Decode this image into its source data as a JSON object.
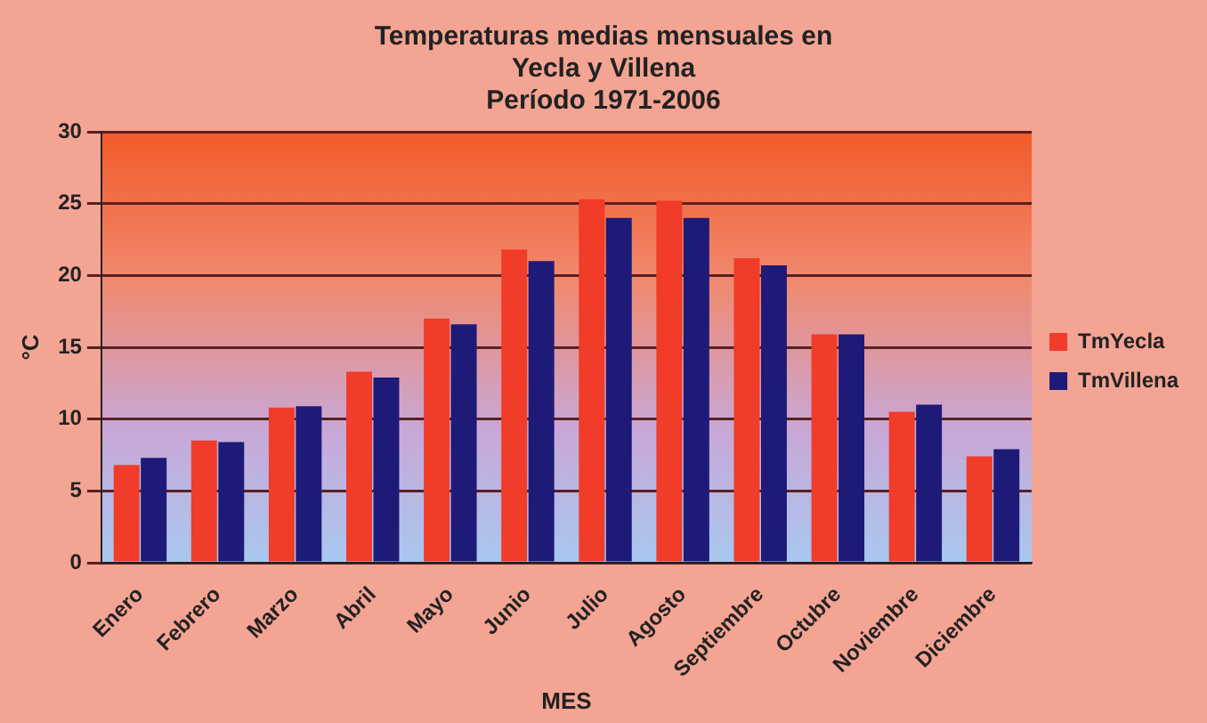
{
  "chart_data": {
    "type": "bar",
    "title": "Temperaturas medias mensuales en\nYecla y Villena\nPeríodo 1971-2006",
    "xlabel": "MES",
    "ylabel": "°C",
    "categories": [
      "Enero",
      "Febrero",
      "Marzo",
      "Abril",
      "Mayo",
      "Junio",
      "Julio",
      "Agosto",
      "Septiembre",
      "Octubre",
      "Noviembre",
      "Diciembre"
    ],
    "series": [
      {
        "name": "TmYecla",
        "color": "#f03c28",
        "values": [
          6.8,
          8.5,
          10.8,
          13.3,
          17.0,
          21.8,
          25.3,
          25.2,
          21.2,
          15.9,
          10.5,
          7.4
        ]
      },
      {
        "name": "TmVillena",
        "color": "#1e1a78",
        "values": [
          7.3,
          8.4,
          10.9,
          12.9,
          16.6,
          21.0,
          24.0,
          24.0,
          20.7,
          15.9,
          11.0,
          7.9
        ]
      }
    ],
    "ylim": [
      0,
      30
    ],
    "yticks": [
      0,
      5,
      10,
      15,
      20,
      25,
      30
    ],
    "grid": "y",
    "legend": "right"
  }
}
